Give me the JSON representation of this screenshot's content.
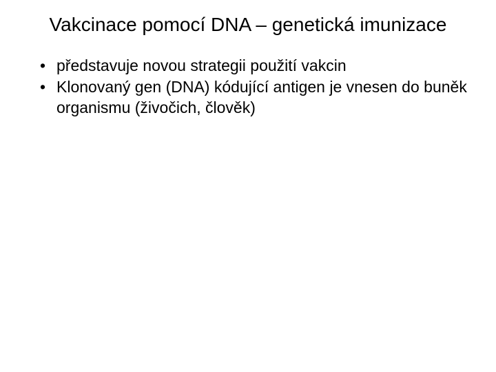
{
  "slide": {
    "title": "Vakcinace pomocí DNA – genetická imunizace",
    "bullets": [
      "představuje novou strategii použití vakcin",
      "Klonovaný gen (DNA) kódující antigen je vnesen do buněk organismu (živočich, člověk)"
    ],
    "colors": {
      "background": "#ffffff",
      "text": "#000000"
    },
    "typography": {
      "title_fontsize": 28,
      "body_fontsize": 23,
      "font_family": "Arial"
    }
  }
}
